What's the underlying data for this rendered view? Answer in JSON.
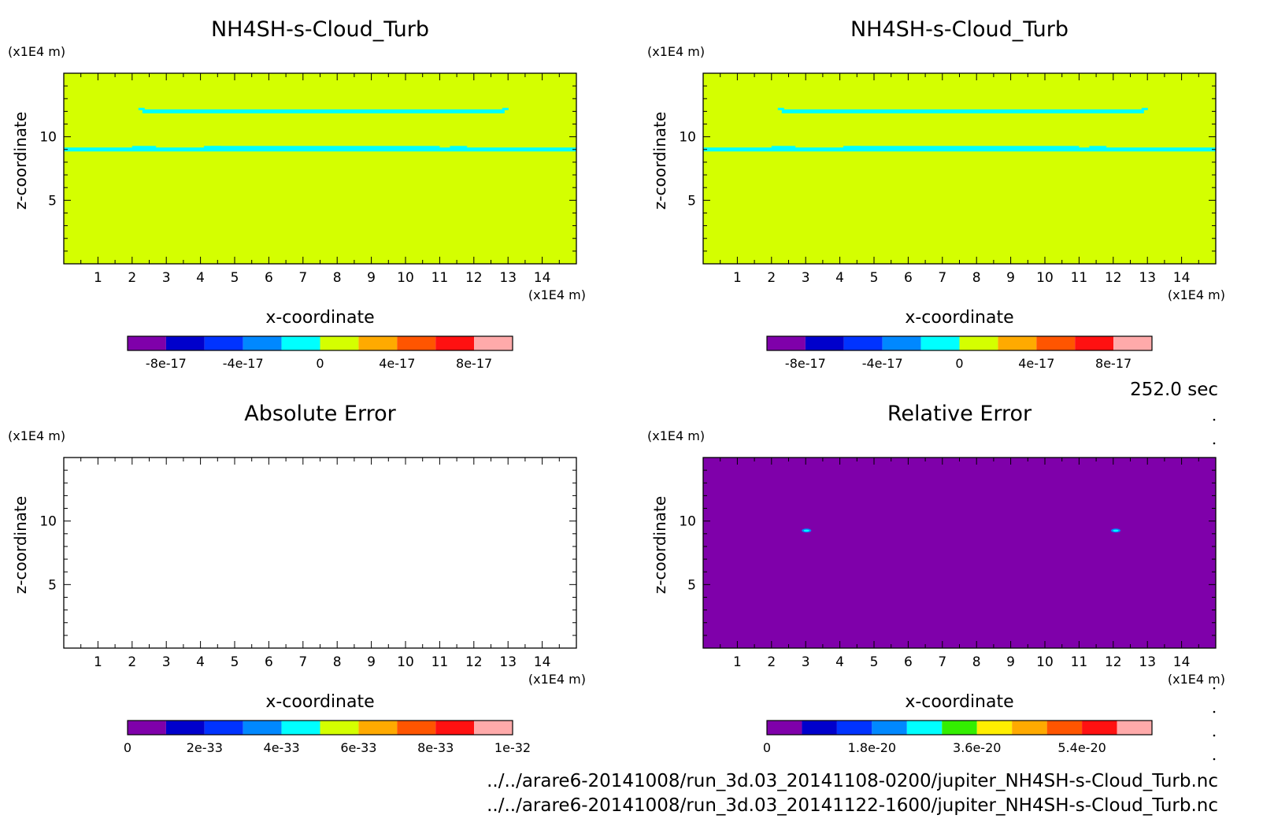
{
  "time_label": "252.0 sec",
  "files": [
    "../../arare6-20141008/run_3d.03_20141108-0200/jupiter_NH4SH-s-Cloud_Turb.nc",
    "../../arare6-20141008/run_3d.03_20141122-1600/jupiter_NH4SH-s-Cloud_Turb.nc"
  ],
  "chart_data": [
    {
      "type": "heatmap",
      "title": "NH4SH-s-Cloud_Turb",
      "xlabel": "x-coordinate",
      "ylabel": "z-coordinate",
      "xunit": "(x1E4 m)",
      "yunit": "(x1E4 m)",
      "xlim": [
        0,
        15
      ],
      "ylim": [
        0,
        15
      ],
      "xticks": [
        "1",
        "2",
        "3",
        "4",
        "5",
        "6",
        "7",
        "8",
        "9",
        "10",
        "11",
        "12",
        "13",
        "14"
      ],
      "yticks": [
        "5",
        "10"
      ],
      "background_color": "#d4ff00",
      "features": [
        {
          "name": "upper band",
          "color": "#00ffff",
          "x": [
            2.3,
            12.9
          ],
          "z": 12.0
        },
        {
          "name": "lower band",
          "color": "#00ffff",
          "x": [
            0,
            15
          ],
          "z": 9.0
        }
      ],
      "colorbar": {
        "colors": [
          "#7f00aa",
          "#0000cc",
          "#0033ff",
          "#0088ff",
          "#00ffff",
          "#d4ff00",
          "#ffaa00",
          "#ff5500",
          "#ff1111",
          "#ffaaaa"
        ],
        "tick_labels": [
          "-8e-17",
          "-4e-17",
          "0",
          "4e-17",
          "8e-17"
        ],
        "tick_positions": [
          1,
          3,
          5,
          7,
          9
        ]
      }
    },
    {
      "type": "heatmap",
      "title": "NH4SH-s-Cloud_Turb",
      "xlabel": "x-coordinate",
      "ylabel": "z-coordinate",
      "xunit": "(x1E4 m)",
      "yunit": "(x1E4 m)",
      "xlim": [
        0,
        15
      ],
      "ylim": [
        0,
        15
      ],
      "xticks": [
        "1",
        "2",
        "3",
        "4",
        "5",
        "6",
        "7",
        "8",
        "9",
        "10",
        "11",
        "12",
        "13",
        "14"
      ],
      "yticks": [
        "5",
        "10"
      ],
      "background_color": "#d4ff00",
      "features": [
        {
          "name": "upper band",
          "color": "#00ffff",
          "x": [
            2.3,
            12.9
          ],
          "z": 12.0
        },
        {
          "name": "lower band",
          "color": "#00ffff",
          "x": [
            0,
            15
          ],
          "z": 9.0
        }
      ],
      "colorbar": {
        "colors": [
          "#7f00aa",
          "#0000cc",
          "#0033ff",
          "#0088ff",
          "#00ffff",
          "#d4ff00",
          "#ffaa00",
          "#ff5500",
          "#ff1111",
          "#ffaaaa"
        ],
        "tick_labels": [
          "-8e-17",
          "-4e-17",
          "0",
          "4e-17",
          "8e-17"
        ],
        "tick_positions": [
          1,
          3,
          5,
          7,
          9
        ]
      }
    },
    {
      "type": "heatmap",
      "title": "Absolute Error",
      "xlabel": "x-coordinate",
      "ylabel": "z-coordinate",
      "xunit": "(x1E4 m)",
      "yunit": "(x1E4 m)",
      "xlim": [
        0,
        15
      ],
      "ylim": [
        0,
        15
      ],
      "xticks": [
        "1",
        "2",
        "3",
        "4",
        "5",
        "6",
        "7",
        "8",
        "9",
        "10",
        "11",
        "12",
        "13",
        "14"
      ],
      "yticks": [
        "5",
        "10"
      ],
      "background_color": "#ffffff",
      "features": [],
      "colorbar": {
        "colors": [
          "#7f00aa",
          "#0000cc",
          "#0033ff",
          "#0088ff",
          "#00ffff",
          "#d4ff00",
          "#ffaa00",
          "#ff5500",
          "#ff1111",
          "#ffaaaa"
        ],
        "tick_labels": [
          "0",
          "2e-33",
          "4e-33",
          "6e-33",
          "8e-33",
          "1e-32"
        ],
        "tick_positions": [
          0,
          2,
          4,
          6,
          8,
          10
        ]
      }
    },
    {
      "type": "heatmap",
      "title": "Relative Error",
      "xlabel": "x-coordinate",
      "ylabel": "z-coordinate",
      "xunit": "(x1E4 m)",
      "yunit": "(x1E4 m)",
      "xlim": [
        0,
        15
      ],
      "ylim": [
        0,
        15
      ],
      "xticks": [
        "1",
        "2",
        "3",
        "4",
        "5",
        "6",
        "7",
        "8",
        "9",
        "10",
        "11",
        "12",
        "13",
        "14"
      ],
      "yticks": [
        "5",
        "10"
      ],
      "background_color": "#7f00aa",
      "features": [
        {
          "name": "spot",
          "color": "#00ffff",
          "x": [
            2.9,
            3.15
          ],
          "z": 9.25
        },
        {
          "name": "spot",
          "color": "#00ffff",
          "x": [
            11.95,
            12.2
          ],
          "z": 9.25
        }
      ],
      "colorbar": {
        "colors": [
          "#7f00aa",
          "#0000cc",
          "#0033ff",
          "#0088ff",
          "#00ffff",
          "#33ee00",
          "#ffee00",
          "#ffaa00",
          "#ff5500",
          "#ff1111",
          "#ffaaaa"
        ],
        "tick_labels": [
          "0",
          "1.8e-20",
          "3.6e-20",
          "5.4e-20"
        ],
        "tick_positions": [
          0,
          3,
          6,
          9
        ]
      }
    }
  ]
}
